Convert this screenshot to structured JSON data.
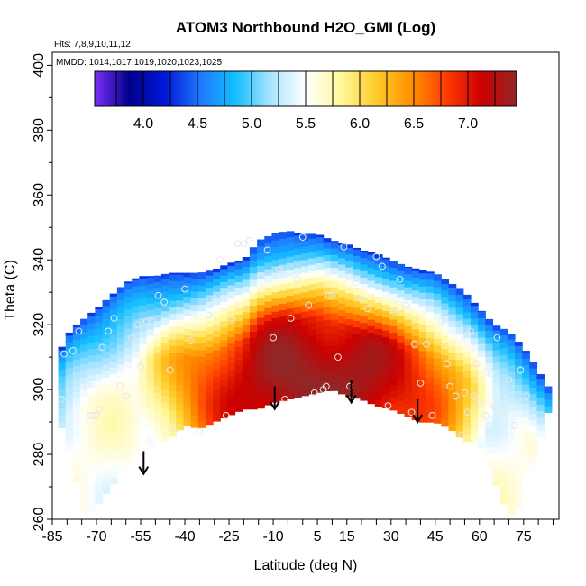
{
  "chart_data": {
    "type": "heatmap",
    "title": "ATOM3 Northbound H2O_GMI (Log)",
    "annotations": {
      "flights": "Flts: 7,8,9,10,11,12",
      "dates": "MMDD: 1014,1017,1019,1020,1023,1025"
    },
    "xlabel": "Latitude (deg N)",
    "ylabel": "Theta (C)",
    "xlim": [
      -85,
      87
    ],
    "ylim": [
      260,
      404
    ],
    "x_ticks": [
      -85,
      -70,
      -55,
      -40,
      -25,
      -10,
      5,
      15,
      30,
      45,
      60,
      75
    ],
    "x_tick_labels": [
      "-85",
      "-70",
      "-55",
      "-40",
      "-25",
      "-10",
      "5",
      "15",
      "30",
      "45",
      "60",
      "75"
    ],
    "x_minor_step": 5,
    "y_ticks": [
      260,
      280,
      300,
      320,
      340,
      360,
      380,
      400
    ],
    "y_tick_labels": [
      "260",
      "280",
      "300",
      "320",
      "340",
      "360",
      "380",
      "400"
    ],
    "colorbar": {
      "min": 3.55,
      "max": 7.45,
      "ticks": [
        4.0,
        4.5,
        5.0,
        5.5,
        6.0,
        6.5,
        7.0
      ],
      "tick_labels": [
        "4.0",
        "4.5",
        "5.0",
        "5.5",
        "6.0",
        "6.5",
        "7.0"
      ],
      "colors": [
        "#7b2ff7",
        "#00008b",
        "#0018d8",
        "#1e78ff",
        "#14beff",
        "#a8e4ff",
        "#ffffff",
        "#fff89c",
        "#ffcc2a",
        "#ff9200",
        "#ff3c00",
        "#cc0000",
        "#922626"
      ]
    },
    "field": {
      "boundary_lat": [
        -83,
        -79,
        -74,
        -70,
        -65,
        -60,
        -55,
        -50,
        -45,
        -40,
        -35,
        -30,
        -25,
        -20,
        -15,
        -10,
        -5,
        0,
        5,
        10,
        15,
        20,
        25,
        30,
        35,
        40,
        45,
        50,
        55,
        60,
        65,
        70,
        75,
        80,
        83
      ],
      "bottom_theta": [
        292,
        280,
        261,
        264,
        270,
        276,
        282,
        283,
        285,
        289,
        288,
        290,
        292,
        294,
        294,
        296,
        297,
        298,
        299,
        300,
        298,
        297,
        295,
        294,
        292,
        290,
        290,
        288,
        284,
        284,
        272,
        261,
        265,
        283,
        293
      ],
      "top_theta": [
        311,
        318,
        322,
        325,
        329,
        333,
        335,
        335,
        336,
        336,
        336,
        337,
        339,
        340,
        346,
        348,
        349,
        348,
        348,
        346,
        345,
        343,
        342,
        340,
        338,
        337,
        336,
        333,
        330,
        325,
        320,
        318,
        313,
        306,
        301
      ],
      "core_lat": 5,
      "core_theta": 302,
      "core_value": 7.45,
      "edge_value": 4.3
    },
    "points": [
      [
        -82,
        297
      ],
      [
        -81,
        311
      ],
      [
        -78,
        312
      ],
      [
        -76,
        318
      ],
      [
        -73,
        301
      ],
      [
        -72,
        292
      ],
      [
        -71,
        292
      ],
      [
        -70,
        292
      ],
      [
        -69,
        294
      ],
      [
        -68,
        313
      ],
      [
        -66,
        318
      ],
      [
        -64,
        322
      ],
      [
        -62,
        301
      ],
      [
        -60,
        298
      ],
      [
        -58,
        316
      ],
      [
        -56,
        320
      ],
      [
        -55,
        307
      ],
      [
        -53,
        321
      ],
      [
        -51,
        321
      ],
      [
        -49,
        329
      ],
      [
        -47,
        327
      ],
      [
        -45,
        306
      ],
      [
        -43,
        288
      ],
      [
        -40,
        331
      ],
      [
        -38,
        315
      ],
      [
        -35,
        287
      ],
      [
        -32,
        323
      ],
      [
        -30,
        328
      ],
      [
        -28,
        340
      ],
      [
        -26,
        292
      ],
      [
        -24,
        322
      ],
      [
        -22,
        345
      ],
      [
        -20,
        345
      ],
      [
        -18,
        346
      ],
      [
        -14,
        335
      ],
      [
        -12,
        343
      ],
      [
        -10,
        316
      ],
      [
        -8,
        337
      ],
      [
        -6,
        297
      ],
      [
        -4,
        322
      ],
      [
        -2,
        334
      ],
      [
        0,
        347
      ],
      [
        2,
        326
      ],
      [
        4,
        299
      ],
      [
        7,
        300
      ],
      [
        8,
        301
      ],
      [
        9,
        329
      ],
      [
        10,
        329
      ],
      [
        12,
        310
      ],
      [
        14,
        344
      ],
      [
        16,
        301
      ],
      [
        18,
        333
      ],
      [
        20,
        328
      ],
      [
        22,
        325
      ],
      [
        25,
        341
      ],
      [
        27,
        338
      ],
      [
        29,
        295
      ],
      [
        31,
        324
      ],
      [
        33,
        334
      ],
      [
        35,
        326
      ],
      [
        37,
        293
      ],
      [
        38,
        314
      ],
      [
        40,
        302
      ],
      [
        42,
        314
      ],
      [
        44,
        292
      ],
      [
        47,
        321
      ],
      [
        49,
        308
      ],
      [
        50,
        301
      ],
      [
        52,
        298
      ],
      [
        54,
        286
      ],
      [
        55,
        299
      ],
      [
        56,
        293
      ],
      [
        57,
        318
      ],
      [
        58,
        298
      ],
      [
        59,
        308
      ],
      [
        60,
        296
      ],
      [
        62,
        292
      ],
      [
        64,
        305
      ],
      [
        65,
        295
      ],
      [
        66,
        316
      ],
      [
        68,
        293
      ],
      [
        70,
        303
      ],
      [
        72,
        289
      ],
      [
        74,
        306
      ],
      [
        76,
        298
      ]
    ],
    "arrows": [
      {
        "lat": -54,
        "theta_start": 281,
        "theta_end": 274
      },
      {
        "lat": -9.5,
        "theta_start": 301,
        "theta_end": 294
      },
      {
        "lat": 16.5,
        "theta_start": 303,
        "theta_end": 296
      },
      {
        "lat": 39,
        "theta_start": 297,
        "theta_end": 290
      }
    ]
  }
}
